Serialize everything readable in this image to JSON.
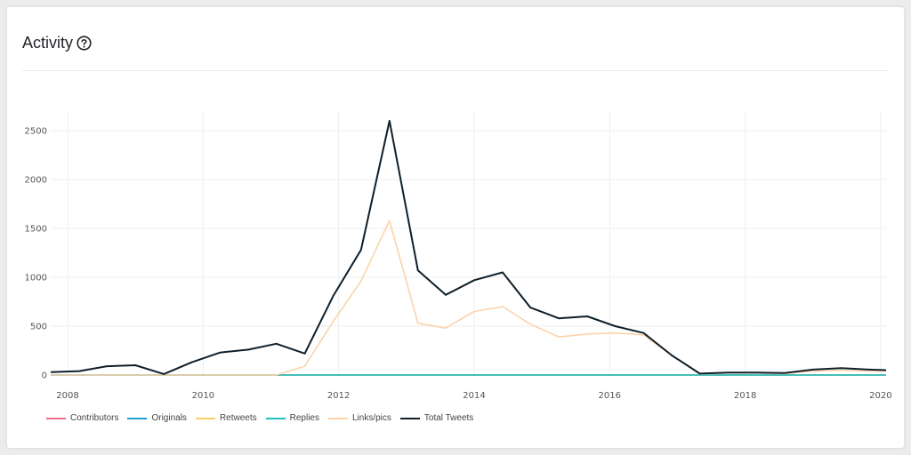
{
  "header": {
    "title": "Activity"
  },
  "icons": {
    "help": "help-circle-icon"
  },
  "chart_data": {
    "type": "line",
    "title": "",
    "xlabel": "",
    "ylabel": "",
    "grid": true,
    "legend_position": "bottom-left",
    "x": [
      2007.75,
      2008.17,
      2008.58,
      2009.0,
      2009.42,
      2009.83,
      2010.25,
      2010.67,
      2011.08,
      2011.5,
      2011.92,
      2012.33,
      2012.75,
      2013.17,
      2013.58,
      2014.0,
      2014.42,
      2014.83,
      2015.25,
      2015.67,
      2016.08,
      2016.5,
      2016.92,
      2017.33,
      2017.75,
      2018.17,
      2018.58,
      2019.0,
      2019.42,
      2019.83,
      2020.08
    ],
    "xlim": [
      2007.75,
      2020.08
    ],
    "ylim": [
      0,
      2700
    ],
    "x_ticks": [
      2008,
      2010,
      2012,
      2014,
      2016,
      2020
    ],
    "x_tick_labels": [
      "2008",
      "2010",
      "2012",
      "2014",
      "2016",
      "2020"
    ],
    "extra_x_tick": {
      "value": 2018,
      "label": "2018"
    },
    "y_ticks": [
      0,
      500,
      1000,
      1500,
      2000,
      2500
    ],
    "y_tick_labels": [
      "0",
      "500",
      "1000",
      "1500",
      "2000",
      "2500"
    ],
    "series": [
      {
        "name": "Contributors",
        "color": "#f06b8a",
        "values": [
          0,
          0,
          0,
          0,
          0,
          0,
          0,
          0,
          0,
          0,
          0,
          0,
          0,
          0,
          0,
          0,
          0,
          0,
          0,
          0,
          0,
          0,
          0,
          0,
          0,
          0,
          0,
          0,
          0,
          0,
          0
        ]
      },
      {
        "name": "Originals",
        "color": "#1aa0d8",
        "values": [
          0,
          0,
          0,
          0,
          0,
          0,
          0,
          0,
          0,
          0,
          0,
          0,
          0,
          0,
          0,
          0,
          0,
          0,
          0,
          0,
          0,
          0,
          0,
          0,
          0,
          0,
          0,
          0,
          0,
          0,
          0
        ]
      },
      {
        "name": "Retweets",
        "color": "#f5cf63",
        "values": [
          0,
          0,
          0,
          0,
          0,
          0,
          0,
          0,
          0,
          0,
          0,
          0,
          0,
          0,
          0,
          0,
          0,
          0,
          0,
          0,
          0,
          0,
          0,
          0,
          0,
          0,
          0,
          0,
          0,
          0,
          0
        ]
      },
      {
        "name": "Replies",
        "color": "#1fc2c2",
        "values": [
          0,
          0,
          0,
          0,
          0,
          0,
          0,
          0,
          0,
          0,
          0,
          0,
          0,
          0,
          0,
          0,
          0,
          0,
          0,
          0,
          0,
          0,
          0,
          0,
          0,
          0,
          0,
          0,
          0,
          0,
          0
        ]
      },
      {
        "name": "Links/pics",
        "color": "#fcd3ab",
        "values": [
          0,
          0,
          0,
          0,
          0,
          0,
          0,
          0,
          0,
          90,
          550,
          960,
          1580,
          530,
          480,
          650,
          700,
          520,
          390,
          420,
          430,
          410,
          200,
          10,
          20,
          20,
          15,
          40,
          50,
          40,
          40
        ]
      },
      {
        "name": "Total Tweets",
        "color": "#0e1f2b",
        "values": [
          30,
          40,
          90,
          100,
          10,
          130,
          230,
          260,
          320,
          220,
          810,
          1280,
          2600,
          1070,
          820,
          970,
          1050,
          690,
          580,
          600,
          500,
          430,
          200,
          15,
          25,
          25,
          20,
          55,
          70,
          55,
          50
        ]
      }
    ]
  }
}
